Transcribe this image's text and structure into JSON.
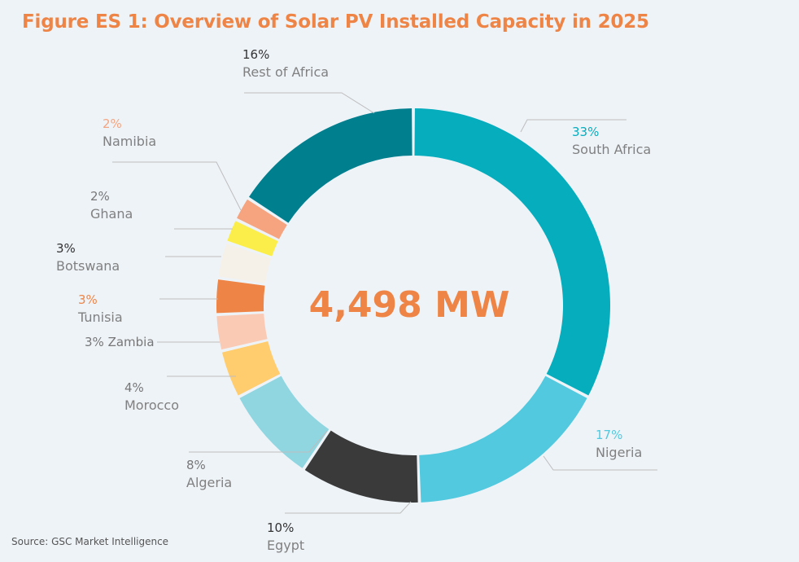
{
  "figure": {
    "title": "Figure ES 1: Overview of Solar PV Installed Capacity in 2025",
    "source": "Source: GSC Market Intelligence",
    "center_label": "4,498 MW"
  },
  "colors": {
    "title": "#ee8546",
    "center": "#ee8546"
  },
  "chart_data": {
    "type": "pie",
    "subtype": "donut",
    "title": "Figure ES 1: Overview of Solar PV Installed Capacity in 2025",
    "total_label": "4,498 MW",
    "unit": "%",
    "slices": [
      {
        "name": "South Africa",
        "value": 33,
        "label": "33%",
        "color": "#05adbd",
        "pct_color": "#05adbd"
      },
      {
        "name": "Nigeria",
        "value": 17,
        "label": "17%",
        "color": "#52c9de",
        "pct_color": "#52c9de"
      },
      {
        "name": "Egypt",
        "value": 10,
        "label": "10%",
        "color": "#3a3a3a",
        "pct_color": "#333333"
      },
      {
        "name": "Algeria",
        "value": 8,
        "label": "8%",
        "color": "#8fd6e1",
        "pct_color": "#777777"
      },
      {
        "name": "Morocco",
        "value": 4,
        "label": "4%",
        "color": "#ffcc6e",
        "pct_color": "#777777"
      },
      {
        "name": "Zambia",
        "value": 3,
        "label": "3% Zambia",
        "color": "#fbcab4",
        "pct_color": "#777777"
      },
      {
        "name": "Tunisia",
        "value": 3,
        "label": "3%",
        "color": "#ee8546",
        "pct_color": "#ee8546"
      },
      {
        "name": "Botswana",
        "value": 3,
        "label": "3%",
        "color": "#f5f0e8",
        "pct_color": "#333333"
      },
      {
        "name": "Ghana",
        "value": 2,
        "label": "2%",
        "color": "#fbee4a",
        "pct_color": "#777777"
      },
      {
        "name": "Namibia",
        "value": 2,
        "label": "2%",
        "color": "#f5a47f",
        "pct_color": "#f5a47f"
      },
      {
        "name": "Rest of Africa",
        "value": 16,
        "label": "16%",
        "color": "#007f8f",
        "pct_color": "#333333"
      }
    ]
  }
}
